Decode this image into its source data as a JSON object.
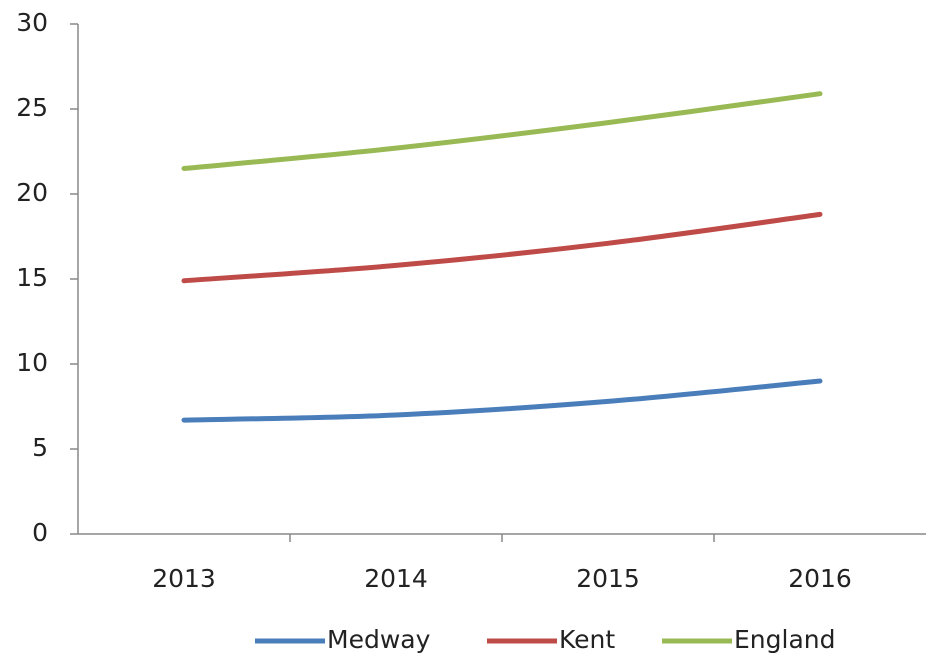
{
  "chart_data": {
    "type": "line",
    "categories": [
      "2013",
      "2014",
      "2015",
      "2016"
    ],
    "series": [
      {
        "name": "Medway",
        "color": "#4a7ebb",
        "values": [
          6.7,
          7.0,
          7.8,
          9.0
        ]
      },
      {
        "name": "Kent",
        "color": "#be4b48",
        "values": [
          14.9,
          15.8,
          17.1,
          18.8
        ]
      },
      {
        "name": "England",
        "color": "#98b954",
        "values": [
          21.5,
          22.7,
          24.2,
          25.9
        ]
      }
    ],
    "ylim": [
      0,
      30
    ],
    "yticks": [
      0,
      5,
      10,
      15,
      20,
      25,
      30
    ],
    "grid": false,
    "legend": "bottom"
  }
}
